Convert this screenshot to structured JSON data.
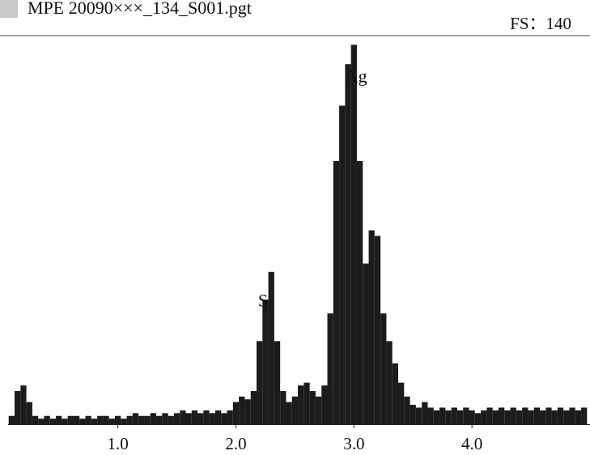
{
  "chart_data": {
    "type": "bar",
    "title": "MPE 20090×××_134_S001.pgt",
    "full_scale_label": "FS：140",
    "x": [
      0.1,
      0.15,
      0.2,
      0.25,
      0.3,
      0.35,
      0.4,
      0.45,
      0.5,
      0.55,
      0.6,
      0.65,
      0.7,
      0.75,
      0.8,
      0.85,
      0.9,
      0.95,
      1.0,
      1.05,
      1.1,
      1.15,
      1.2,
      1.25,
      1.3,
      1.35,
      1.4,
      1.45,
      1.5,
      1.55,
      1.6,
      1.65,
      1.7,
      1.75,
      1.8,
      1.85,
      1.9,
      1.95,
      2.0,
      2.05,
      2.1,
      2.15,
      2.2,
      2.25,
      2.3,
      2.35,
      2.4,
      2.45,
      2.5,
      2.55,
      2.6,
      2.65,
      2.7,
      2.75,
      2.8,
      2.85,
      2.9,
      2.95,
      3.0,
      3.05,
      3.1,
      3.15,
      3.2,
      3.25,
      3.3,
      3.35,
      3.4,
      3.45,
      3.5,
      3.55,
      3.6,
      3.65,
      3.7,
      3.75,
      3.8,
      3.85,
      3.9,
      3.95,
      4.0,
      4.05,
      4.1,
      4.15,
      4.2,
      4.25,
      4.3,
      4.35,
      4.4,
      4.45,
      4.5,
      4.55,
      4.6,
      4.65,
      4.7,
      4.75,
      4.8,
      4.85,
      4.9,
      4.95
    ],
    "values": [
      3,
      12,
      14,
      8,
      3,
      2,
      3,
      2,
      3,
      2,
      3,
      3,
      2,
      3,
      2,
      3,
      3,
      2,
      3,
      2,
      3,
      4,
      3,
      3,
      4,
      3,
      4,
      3,
      4,
      5,
      4,
      5,
      4,
      5,
      4,
      5,
      4,
      5,
      8,
      10,
      9,
      12,
      30,
      45,
      55,
      30,
      12,
      8,
      10,
      14,
      15,
      12,
      10,
      14,
      40,
      95,
      115,
      130,
      137,
      95,
      58,
      70,
      68,
      40,
      30,
      22,
      15,
      10,
      7,
      6,
      8,
      6,
      5,
      6,
      5,
      6,
      5,
      6,
      5,
      4,
      5,
      6,
      5,
      6,
      5,
      6,
      5,
      6,
      5,
      6,
      5,
      6,
      5,
      6,
      5,
      6,
      5,
      6
    ],
    "color": "#1c1c1c",
    "xlim": [
      0.07,
      5.0
    ],
    "ylim": [
      0,
      140
    ],
    "xticks": [
      {
        "value": 1,
        "label": "1.0"
      },
      {
        "value": 2,
        "label": "2.0"
      },
      {
        "value": 3,
        "label": "3.0"
      },
      {
        "value": 4,
        "label": "4.0"
      }
    ],
    "annotations": [
      {
        "text": "S",
        "x": 2.23,
        "y": 44
      },
      {
        "text": "Ag",
        "x": 3.02,
        "y": 125
      }
    ]
  }
}
